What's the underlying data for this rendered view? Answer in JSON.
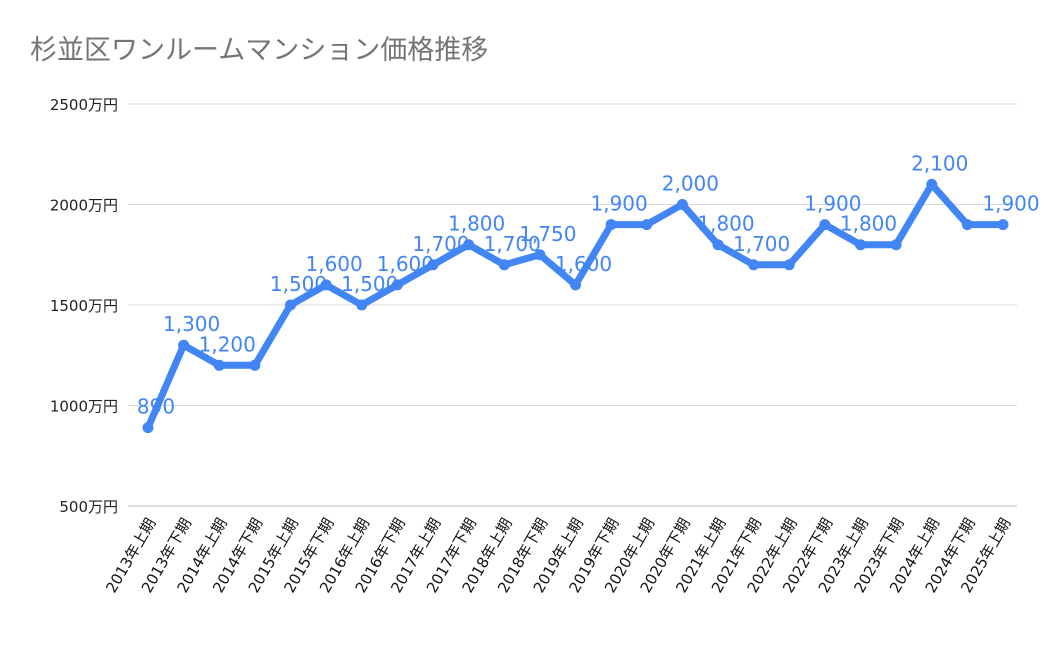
{
  "chart_data": {
    "type": "line",
    "title": "杉並区ワンルームマンション価格推移",
    "xlabel": "",
    "ylabel": "",
    "ylim": [
      500,
      2500
    ],
    "yticks": [
      500,
      1000,
      1500,
      2000,
      2500
    ],
    "ytick_labels": [
      "500万円",
      "1000万円",
      "1500万円",
      "2000万円",
      "2500万円"
    ],
    "grid": true,
    "legend": "none",
    "line_color": "#4285f4",
    "label_color": "#4285f4",
    "categories": [
      "2013年上期",
      "2013年下期",
      "2014年上期",
      "2014年下期",
      "2015年上期",
      "2015年下期",
      "2016年上期",
      "2016年下期",
      "2017年上期",
      "2017年下期",
      "2018年上期",
      "2018年下期",
      "2019年上期",
      "2019年下期",
      "2020年上期",
      "2020年下期",
      "2021年上期",
      "2021年下期",
      "2022年上期",
      "2022年下期",
      "2023年上期",
      "2023年下期",
      "2024年上期",
      "2024年下期",
      "2025年上期"
    ],
    "values": [
      890,
      1300,
      1200,
      1200,
      1500,
      1600,
      1500,
      1600,
      1700,
      1800,
      1700,
      1750,
      1600,
      1900,
      1900,
      2000,
      1800,
      1700,
      1700,
      1900,
      1800,
      1800,
      2100,
      1900,
      1900
    ],
    "data_labels": [
      "890",
      "1,300",
      "1,200",
      null,
      "1,500",
      "1,600",
      "1,500",
      "1,600",
      "1,700",
      "1,800",
      "1,700",
      "1,750",
      "1,600",
      "1,900",
      null,
      "2,000",
      "1,800",
      "1,700",
      null,
      "1,900",
      "1,800",
      null,
      "2,100",
      null,
      "1,900"
    ]
  }
}
